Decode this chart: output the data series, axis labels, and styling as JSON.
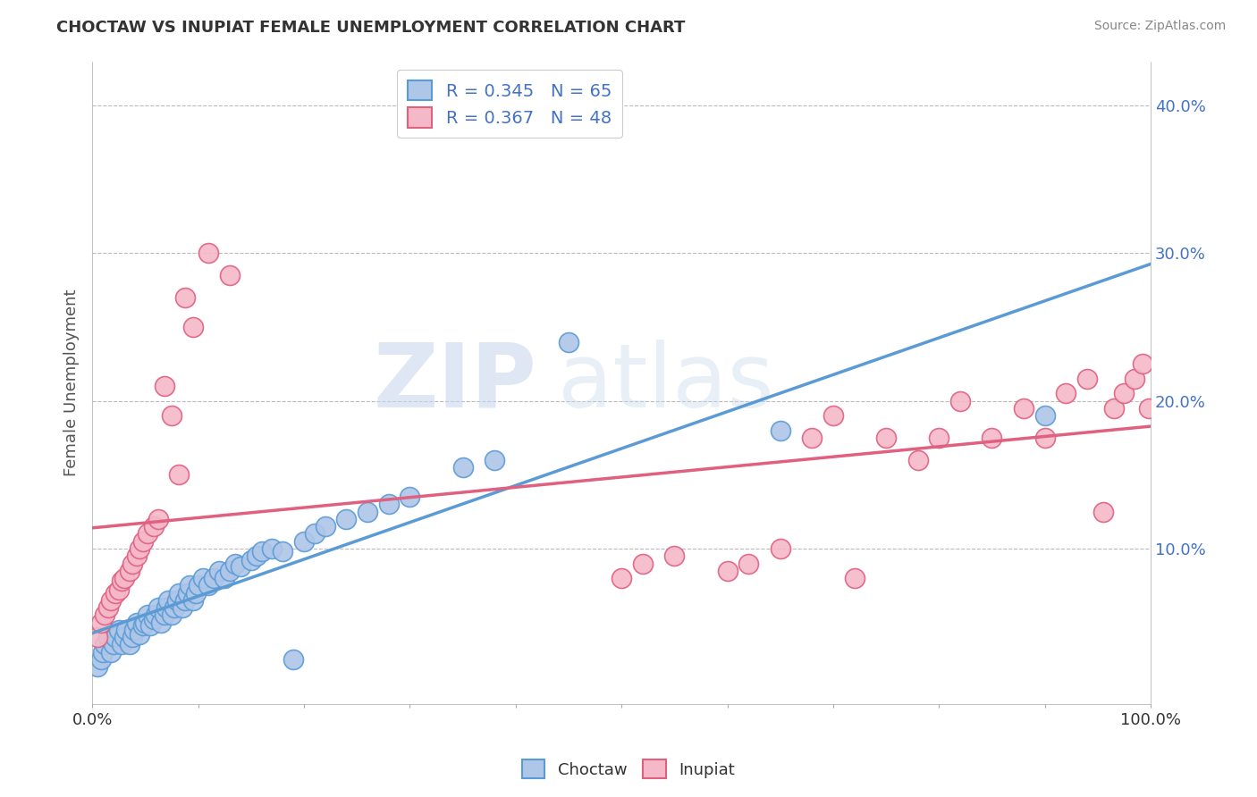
{
  "title": "CHOCTAW VS INUPIAT FEMALE UNEMPLOYMENT CORRELATION CHART",
  "source": "Source: ZipAtlas.com",
  "ylabel": "Female Unemployment",
  "yticks_labels": [
    "10.0%",
    "20.0%",
    "30.0%",
    "40.0%"
  ],
  "ytick_vals": [
    0.1,
    0.2,
    0.3,
    0.4
  ],
  "xlim": [
    0.0,
    1.0
  ],
  "ylim": [
    -0.005,
    0.43
  ],
  "choctaw_color": "#aec6e8",
  "choctaw_edge": "#5b9bd5",
  "inupiat_color": "#f4b8c8",
  "inupiat_edge": "#e06080",
  "line_choctaw": "#5b9bd5",
  "line_inupiat": "#e06080",
  "legend_text_color": "#4472c4",
  "R_choctaw": 0.345,
  "N_choctaw": 65,
  "R_inupiat": 0.367,
  "N_inupiat": 48,
  "watermark_zip": "ZIP",
  "watermark_atlas": "atlas",
  "choctaw_x": [
    0.005,
    0.008,
    0.01,
    0.012,
    0.015,
    0.018,
    0.02,
    0.022,
    0.025,
    0.028,
    0.03,
    0.032,
    0.035,
    0.038,
    0.04,
    0.042,
    0.045,
    0.048,
    0.05,
    0.052,
    0.055,
    0.058,
    0.06,
    0.062,
    0.065,
    0.068,
    0.07,
    0.072,
    0.075,
    0.078,
    0.08,
    0.082,
    0.085,
    0.088,
    0.09,
    0.092,
    0.095,
    0.098,
    0.1,
    0.105,
    0.11,
    0.115,
    0.12,
    0.125,
    0.13,
    0.135,
    0.14,
    0.15,
    0.155,
    0.16,
    0.17,
    0.18,
    0.19,
    0.2,
    0.21,
    0.22,
    0.24,
    0.26,
    0.28,
    0.3,
    0.35,
    0.38,
    0.45,
    0.65,
    0.9
  ],
  "choctaw_y": [
    0.02,
    0.025,
    0.03,
    0.035,
    0.04,
    0.03,
    0.035,
    0.04,
    0.045,
    0.035,
    0.04,
    0.045,
    0.035,
    0.04,
    0.045,
    0.05,
    0.042,
    0.048,
    0.05,
    0.055,
    0.048,
    0.052,
    0.055,
    0.06,
    0.05,
    0.055,
    0.06,
    0.065,
    0.055,
    0.06,
    0.065,
    0.07,
    0.06,
    0.065,
    0.07,
    0.075,
    0.065,
    0.07,
    0.075,
    0.08,
    0.075,
    0.08,
    0.085,
    0.08,
    0.085,
    0.09,
    0.088,
    0.092,
    0.095,
    0.098,
    0.1,
    0.098,
    0.025,
    0.105,
    0.11,
    0.115,
    0.12,
    0.125,
    0.13,
    0.135,
    0.155,
    0.16,
    0.24,
    0.18,
    0.19
  ],
  "inupiat_x": [
    0.005,
    0.008,
    0.012,
    0.015,
    0.018,
    0.022,
    0.025,
    0.028,
    0.03,
    0.035,
    0.038,
    0.042,
    0.045,
    0.048,
    0.052,
    0.058,
    0.062,
    0.068,
    0.075,
    0.082,
    0.088,
    0.095,
    0.11,
    0.13,
    0.5,
    0.52,
    0.55,
    0.6,
    0.62,
    0.65,
    0.68,
    0.7,
    0.72,
    0.75,
    0.78,
    0.8,
    0.82,
    0.85,
    0.88,
    0.9,
    0.92,
    0.94,
    0.955,
    0.965,
    0.975,
    0.985,
    0.992,
    0.998
  ],
  "inupiat_y": [
    0.04,
    0.05,
    0.055,
    0.06,
    0.065,
    0.07,
    0.072,
    0.078,
    0.08,
    0.085,
    0.09,
    0.095,
    0.1,
    0.105,
    0.11,
    0.115,
    0.12,
    0.21,
    0.19,
    0.15,
    0.27,
    0.25,
    0.3,
    0.285,
    0.08,
    0.09,
    0.095,
    0.085,
    0.09,
    0.1,
    0.175,
    0.19,
    0.08,
    0.175,
    0.16,
    0.175,
    0.2,
    0.175,
    0.195,
    0.175,
    0.205,
    0.215,
    0.125,
    0.195,
    0.205,
    0.215,
    0.225,
    0.195
  ]
}
